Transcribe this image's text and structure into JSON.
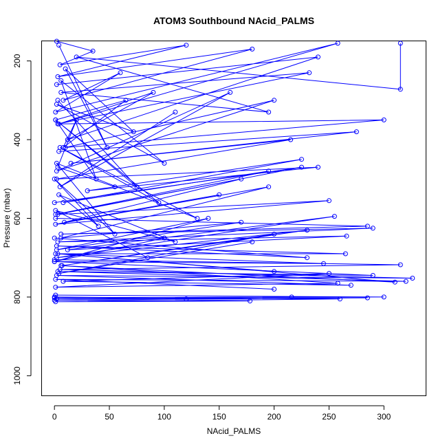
{
  "chart_data": {
    "type": "line",
    "title": "ATOM3 Southbound NAcid_PALMS",
    "xlabel": "NAcid_PALMS",
    "ylabel": "Pressure (mbar)",
    "xlim": [
      -12,
      338
    ],
    "ylim": [
      1050,
      150
    ],
    "y_axis_inverted": true,
    "x_ticks": [
      0,
      50,
      100,
      150,
      200,
      250,
      300
    ],
    "y_ticks": [
      200,
      400,
      600,
      800,
      1000
    ],
    "grid": false,
    "legend": "none",
    "marker": "open-circle",
    "series_color": "#0000ff",
    "series": [
      {
        "x": [
          2,
          35,
          5,
          120,
          3,
          180,
          8,
          60,
          1,
          258,
          4,
          90,
          12,
          240,
          2
        ],
        "y": [
          150,
          175,
          210,
          160,
          240,
          170,
          300,
          230,
          330,
          155,
          360,
          280,
          400,
          190,
          260
        ]
      },
      {
        "x": [
          315,
          315,
          20,
          195,
          6,
          232,
          3,
          300,
          10,
          200,
          2,
          160,
          5,
          110
        ],
        "y": [
          155,
          272,
          190,
          330,
          280,
          230,
          360,
          350,
          420,
          300,
          480,
          280,
          520,
          330
        ]
      },
      {
        "x": [
          4,
          275,
          15,
          215,
          2,
          240,
          30,
          225,
          8,
          195,
          1,
          170,
          9,
          150
        ],
        "y": [
          430,
          380,
          460,
          400,
          500,
          470,
          530,
          450,
          560,
          480,
          590,
          500,
          610,
          540
        ]
      },
      {
        "x": [
          1,
          285,
          6,
          290,
          3,
          266,
          12,
          255,
          2,
          230,
          7,
          200,
          4,
          180
        ],
        "y": [
          600,
          620,
          640,
          625,
          660,
          645,
          680,
          595,
          700,
          630,
          720,
          640,
          740,
          660
        ]
      },
      {
        "x": [
          0,
          315,
          5,
          326,
          2,
          270,
          8,
          250,
          1,
          258,
          6,
          310,
          3,
          200
        ],
        "y": [
          705,
          718,
          730,
          752,
          745,
          770,
          760,
          740,
          775,
          765,
          720,
          762,
          690,
          735
        ]
      },
      {
        "x": [
          1,
          300,
          0,
          216,
          2,
          285,
          0,
          178,
          1,
          260,
          0,
          120
        ],
        "y": [
          795,
          800,
          802,
          800,
          805,
          802,
          808,
          810,
          812,
          805,
          800,
          805
        ]
      },
      {
        "x": [
          3,
          75,
          1,
          95,
          5,
          130,
          2,
          55,
          0,
          40,
          4,
          110,
          1,
          85
        ],
        "y": [
          300,
          520,
          350,
          560,
          420,
          600,
          460,
          640,
          500,
          620,
          540,
          660,
          580,
          700
        ]
      },
      {
        "x": [
          0,
          225,
          3,
          250,
          1,
          195,
          6,
          170,
          2,
          140,
          0,
          100
        ],
        "y": [
          560,
          470,
          590,
          555,
          615,
          520,
          650,
          610,
          680,
          600,
          710,
          650
        ]
      },
      {
        "x": [
          4,
          48,
          10,
          72,
          2,
          100,
          6,
          38,
          1,
          65,
          8,
          20,
          3,
          55
        ],
        "y": [
          160,
          420,
          220,
          380,
          310,
          460,
          250,
          500,
          350,
          300,
          420,
          350,
          470,
          520
        ]
      },
      {
        "x": [
          0,
          230,
          2,
          265,
          1,
          245,
          0,
          290,
          3,
          320,
          1,
          200
        ],
        "y": [
          650,
          700,
          670,
          690,
          690,
          715,
          710,
          745,
          735,
          760,
          755,
          780
        ]
      }
    ]
  }
}
